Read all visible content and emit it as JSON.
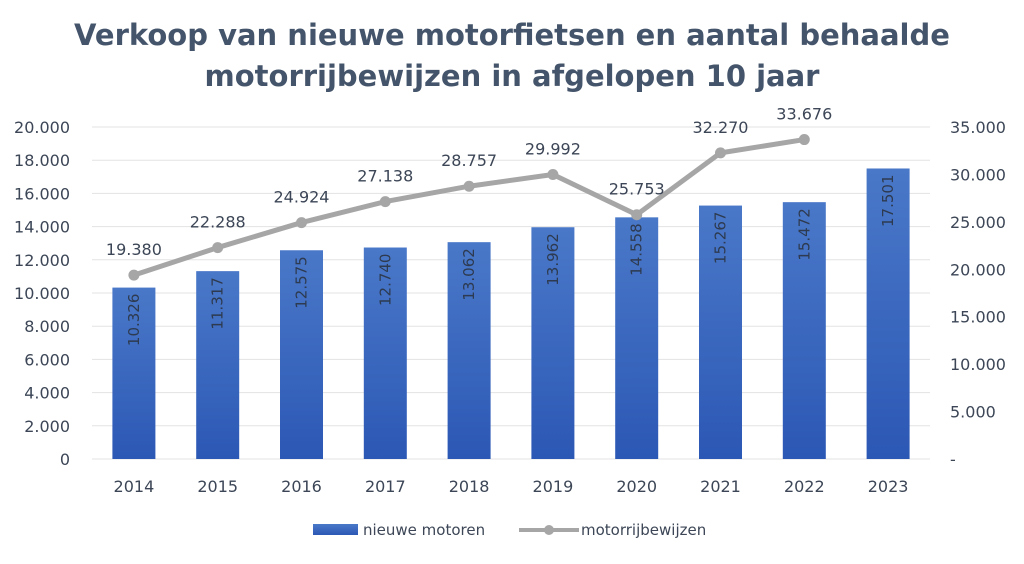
{
  "chart_data": {
    "type": "bar",
    "title_lines": [
      "Verkoop van nieuwe motorfietsen en aantal behaalde",
      "motorrijbewijzen in afgelopen 10 jaar"
    ],
    "categories": [
      "2014",
      "2015",
      "2016",
      "2017",
      "2018",
      "2019",
      "2020",
      "2021",
      "2022",
      "2023"
    ],
    "series": [
      {
        "name": "nieuwe motoren",
        "type": "bar",
        "axis": "left",
        "values": [
          10326,
          11317,
          12575,
          12740,
          13062,
          13962,
          14558,
          15267,
          15472,
          17501
        ],
        "labels": [
          "10.326",
          "11.317",
          "12.575",
          "12.740",
          "13.062",
          "13.962",
          "14.558",
          "15.267",
          "15.472",
          "17.501"
        ]
      },
      {
        "name": "motorrijbewijzen",
        "type": "line",
        "axis": "right",
        "values": [
          19380,
          22288,
          24924,
          27138,
          28757,
          29992,
          25753,
          32270,
          33676,
          null
        ],
        "labels": [
          "19.380",
          "22.288",
          "24.924",
          "27.138",
          "28.757",
          "29.992",
          "25.753",
          "32.270",
          "33.676",
          ""
        ]
      }
    ],
    "y_left": {
      "lim": [
        0,
        20000
      ],
      "ticks": [
        "0",
        "2.000",
        "4.000",
        "6.000",
        "8.000",
        "10.000",
        "12.000",
        "14.000",
        "16.000",
        "18.000",
        "20.000"
      ]
    },
    "y_right": {
      "lim": [
        0,
        35000
      ],
      "ticks": [
        "-",
        "5.000",
        "10.000",
        "15.000",
        "20.000",
        "25.000",
        "30.000",
        "35.000"
      ]
    },
    "grid": true,
    "legend": "bottom",
    "colors": {
      "bar_top": "#4a78c8",
      "bar_bottom": "#2c58b5",
      "line": "#a6a6a6",
      "grid": "#e3e3e3",
      "title": "#44546a",
      "text": "#3c4656"
    }
  }
}
